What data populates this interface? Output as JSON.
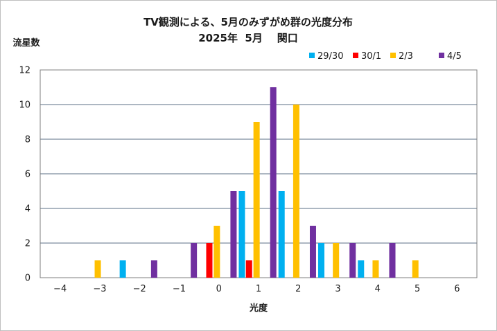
{
  "chart_data": {
    "type": "bar",
    "title": "TV観測による、5月のみずがめ群の光度分布",
    "subtitle": "2025年  5月    関口",
    "xlabel": "光度",
    "ylabel": "流星数",
    "x_ticks": [
      "−4",
      "−3",
      "−2",
      "−1",
      "0",
      "1",
      "2",
      "3",
      "4",
      "5",
      "6"
    ],
    "x_tick_values": [
      -4,
      -3,
      -2,
      -1,
      0,
      1,
      2,
      3,
      4,
      5,
      6
    ],
    "categories": [
      -3,
      -2,
      -1,
      0,
      1,
      2,
      3,
      4,
      5
    ],
    "ylim": [
      0,
      12
    ],
    "y_ticks": [
      0,
      2,
      4,
      6,
      8,
      10,
      12
    ],
    "grid": true,
    "legend_position": "top-right",
    "series": [
      {
        "name": "29/30",
        "color": "#00b0f0",
        "values": [
          0,
          1,
          0,
          0,
          5,
          5,
          2,
          1,
          0
        ]
      },
      {
        "name": "30/1",
        "color": "#ff0000",
        "values": [
          0,
          0,
          0,
          2,
          1,
          0,
          0,
          0,
          0
        ]
      },
      {
        "name": "2/3",
        "color": "#ffc000",
        "values": [
          1,
          0,
          0,
          3,
          9,
          10,
          2,
          1,
          1
        ]
      },
      {
        "name": "4/5",
        "color": "#7030a0",
        "values": [
          0,
          1,
          2,
          5,
          11,
          3,
          2,
          2,
          0
        ]
      }
    ]
  },
  "colors": {
    "grid": "#5b6f86",
    "frame": "#7f7f7f",
    "text": "#1a1a1a"
  }
}
